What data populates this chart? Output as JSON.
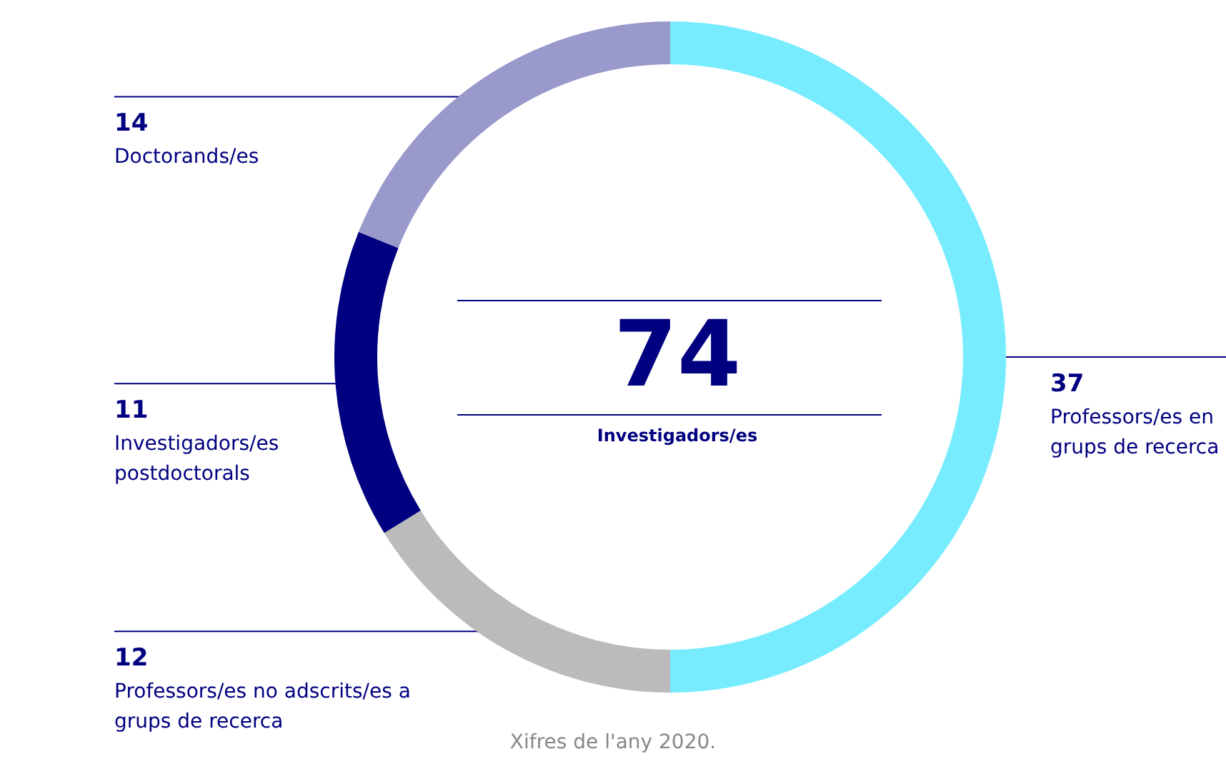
{
  "chart_data": {
    "type": "donut",
    "title": "74",
    "subtitle": "Investigadors/es",
    "categories": [
      "Professors/es en grups de recerca",
      "Professors/es no adscrits/es a grups de recerca",
      "Investigadors/es postdoctorals",
      "Doctorands/es"
    ],
    "values": [
      37,
      12,
      11,
      14
    ],
    "colors": [
      "#77ecff",
      "#bbbbbb",
      "#000080",
      "#9999cc"
    ],
    "data_labels": true,
    "annotations": [
      "Xifres de l'any 2020."
    ]
  }
}
